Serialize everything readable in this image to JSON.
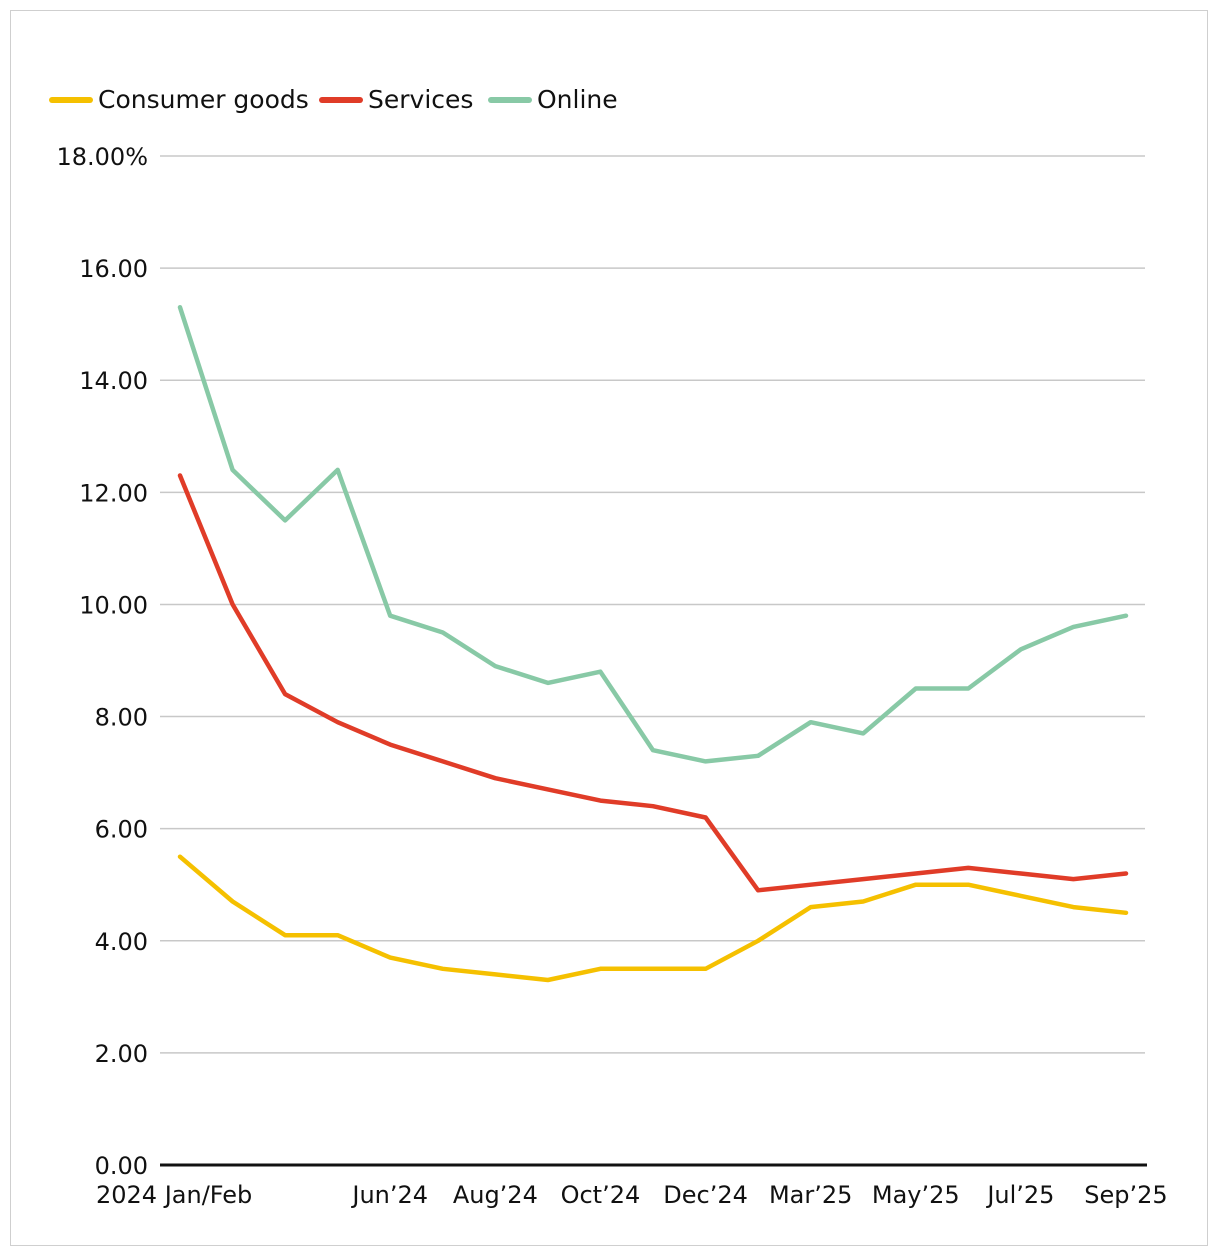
{
  "chart_data": {
    "type": "line",
    "title": "",
    "xlabel": "",
    "ylabel": "",
    "ylim": [
      0,
      18
    ],
    "y_ticks": [
      "0.00",
      "2.00",
      "4.00",
      "6.00",
      "8.00",
      "10.00",
      "12.00",
      "14.00",
      "16.00",
      "18.00%"
    ],
    "x_tick_labels": [
      {
        "index": 0,
        "label": "2024 Jan/Feb"
      },
      {
        "index": 4,
        "label": "Jun’24"
      },
      {
        "index": 6,
        "label": "Aug’24"
      },
      {
        "index": 8,
        "label": "Oct’24"
      },
      {
        "index": 10,
        "label": "Dec’24"
      },
      {
        "index": 12,
        "label": "Mar’25"
      },
      {
        "index": 14,
        "label": "May’25"
      },
      {
        "index": 16,
        "label": "Jul’25"
      },
      {
        "index": 18,
        "label": "Sep’25"
      }
    ],
    "legend_position": "top-left",
    "series": [
      {
        "name": "Consumer goods",
        "color": "#f5c000",
        "values": [
          5.5,
          4.7,
          4.1,
          4.1,
          3.7,
          3.5,
          3.4,
          3.3,
          3.5,
          3.5,
          3.5,
          4.0,
          4.6,
          4.7,
          5.0,
          5.0,
          4.8,
          4.6,
          4.5
        ]
      },
      {
        "name": "Services",
        "color": "#e03c28",
        "values": [
          12.3,
          10.0,
          8.4,
          7.9,
          7.5,
          7.2,
          6.9,
          6.7,
          6.5,
          6.4,
          6.2,
          4.9,
          5.0,
          5.1,
          5.2,
          5.3,
          5.2,
          5.1,
          5.2
        ]
      },
      {
        "name": "Online",
        "color": "#88c9a6",
        "values": [
          15.3,
          12.4,
          11.5,
          12.4,
          9.8,
          9.5,
          8.9,
          8.6,
          8.8,
          7.4,
          7.2,
          7.3,
          7.9,
          7.7,
          8.5,
          8.5,
          9.2,
          9.6,
          9.8
        ]
      }
    ]
  }
}
